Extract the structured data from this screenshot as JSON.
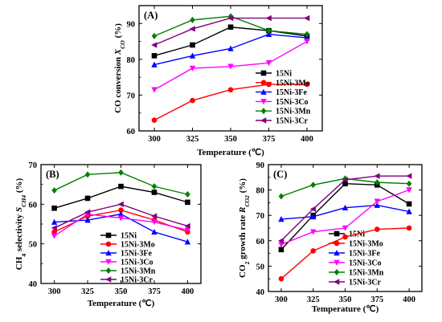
{
  "chart_data": [
    {
      "type": "line",
      "panel_label": "(A)",
      "xlabel": "Temperature (℃)",
      "ylabel_parts": [
        "CO conversion ",
        "X",
        "CO",
        " (%)"
      ],
      "x": [
        300,
        325,
        350,
        375,
        400
      ],
      "xlim": [
        290,
        410
      ],
      "ylim": [
        60,
        95
      ],
      "xticks": [
        "300",
        "325",
        "350",
        "375",
        "400"
      ],
      "yticks": [
        "60",
        "70",
        "80",
        "90"
      ],
      "ytick_values": [
        60,
        70,
        80,
        90
      ],
      "legend_position": "lower-right",
      "series": [
        {
          "name": "15Ni",
          "color": "#000000",
          "marker": "square",
          "values": [
            81,
            84,
            89,
            88,
            86.5
          ]
        },
        {
          "name": "15Ni-3Mo",
          "color": "#ff0000",
          "marker": "circle",
          "values": [
            63,
            68.5,
            71.5,
            73,
            73
          ]
        },
        {
          "name": "15Ni-3Fe",
          "color": "#0000ff",
          "marker": "triangle-up",
          "values": [
            78.5,
            81,
            83,
            87,
            86
          ]
        },
        {
          "name": "15Ni-3Co",
          "color": "#ff00ff",
          "marker": "triangle-down",
          "values": [
            71.5,
            77.5,
            78,
            79,
            85
          ]
        },
        {
          "name": "15Ni-3Mn",
          "color": "#008000",
          "marker": "diamond",
          "values": [
            86.5,
            91,
            92,
            88,
            87
          ]
        },
        {
          "name": "15Ni-3Cr",
          "color": "#800080",
          "marker": "triangle-left",
          "values": [
            84,
            88.5,
            91.5,
            91.5,
            91.5
          ]
        }
      ]
    },
    {
      "type": "line",
      "panel_label": "(B)",
      "xlabel": "Temperature (℃)",
      "ylabel_parts": [
        "CH",
        "4",
        " selectivity ",
        "S",
        "CH4",
        " (%)"
      ],
      "x": [
        300,
        325,
        350,
        375,
        400
      ],
      "xlim": [
        290,
        410
      ],
      "ylim": [
        40,
        70
      ],
      "xticks": [
        "300",
        "325",
        "350",
        "375",
        "400"
      ],
      "yticks": [
        "40",
        "50",
        "60",
        "70"
      ],
      "ytick_values": [
        40,
        50,
        60,
        70
      ],
      "legend_position": "lower-right",
      "series": [
        {
          "name": "15Ni",
          "color": "#000000",
          "marker": "square",
          "values": [
            59,
            61.5,
            64.5,
            63,
            60.5
          ]
        },
        {
          "name": "15Ni-3Mo",
          "color": "#ff0000",
          "marker": "circle",
          "values": [
            53,
            57,
            58.5,
            56,
            53
          ]
        },
        {
          "name": "15Ni-3Fe",
          "color": "#0000ff",
          "marker": "triangle-up",
          "values": [
            55.5,
            56,
            57.5,
            53,
            50.5
          ]
        },
        {
          "name": "15Ni-3Co",
          "color": "#ff00ff",
          "marker": "triangle-down",
          "values": [
            52,
            57.5,
            56.5,
            55.5,
            53.5
          ]
        },
        {
          "name": "15Ni-3Mn",
          "color": "#008000",
          "marker": "diamond",
          "values": [
            63.5,
            67.5,
            68,
            64.5,
            62.5
          ]
        },
        {
          "name": "15Ni-3Cr",
          "color": "#800080",
          "marker": "triangle-left",
          "values": [
            54,
            58,
            60,
            57,
            54.5
          ]
        }
      ]
    },
    {
      "type": "line",
      "panel_label": "(C)",
      "xlabel": "Temperature (℃)",
      "ylabel_parts": [
        "CO",
        "2",
        " growth rate ",
        "R",
        "CO2",
        " (%)"
      ],
      "x": [
        300,
        325,
        350,
        375,
        400
      ],
      "xlim": [
        290,
        410
      ],
      "ylim": [
        40,
        90
      ],
      "xticks": [
        "300",
        "325",
        "350",
        "375",
        "400"
      ],
      "yticks": [
        "40",
        "50",
        "60",
        "70",
        "80",
        "90"
      ],
      "ytick_values": [
        40,
        50,
        60,
        70,
        80,
        90
      ],
      "legend_position": "lower-right",
      "series": [
        {
          "name": "15Ni",
          "color": "#000000",
          "marker": "square",
          "values": [
            56.5,
            70,
            82.5,
            82,
            74.5
          ]
        },
        {
          "name": "15Ni-3Mo",
          "color": "#ff0000",
          "marker": "circle",
          "values": [
            45,
            56,
            61.5,
            64.5,
            65
          ]
        },
        {
          "name": "15Ni-3Fe",
          "color": "#0000ff",
          "marker": "triangle-up",
          "values": [
            68.5,
            69.5,
            73,
            74,
            71.5
          ]
        },
        {
          "name": "15Ni-3Co",
          "color": "#ff00ff",
          "marker": "triangle-down",
          "values": [
            58.5,
            63.5,
            65,
            75.5,
            80
          ]
        },
        {
          "name": "15Ni-3Mn",
          "color": "#008000",
          "marker": "diamond",
          "values": [
            77.5,
            82,
            84.5,
            83,
            82.5
          ]
        },
        {
          "name": "15Ni-3Cr",
          "color": "#800080",
          "marker": "triangle-left",
          "values": [
            60,
            72.5,
            84,
            85.5,
            85.5
          ]
        }
      ]
    }
  ]
}
